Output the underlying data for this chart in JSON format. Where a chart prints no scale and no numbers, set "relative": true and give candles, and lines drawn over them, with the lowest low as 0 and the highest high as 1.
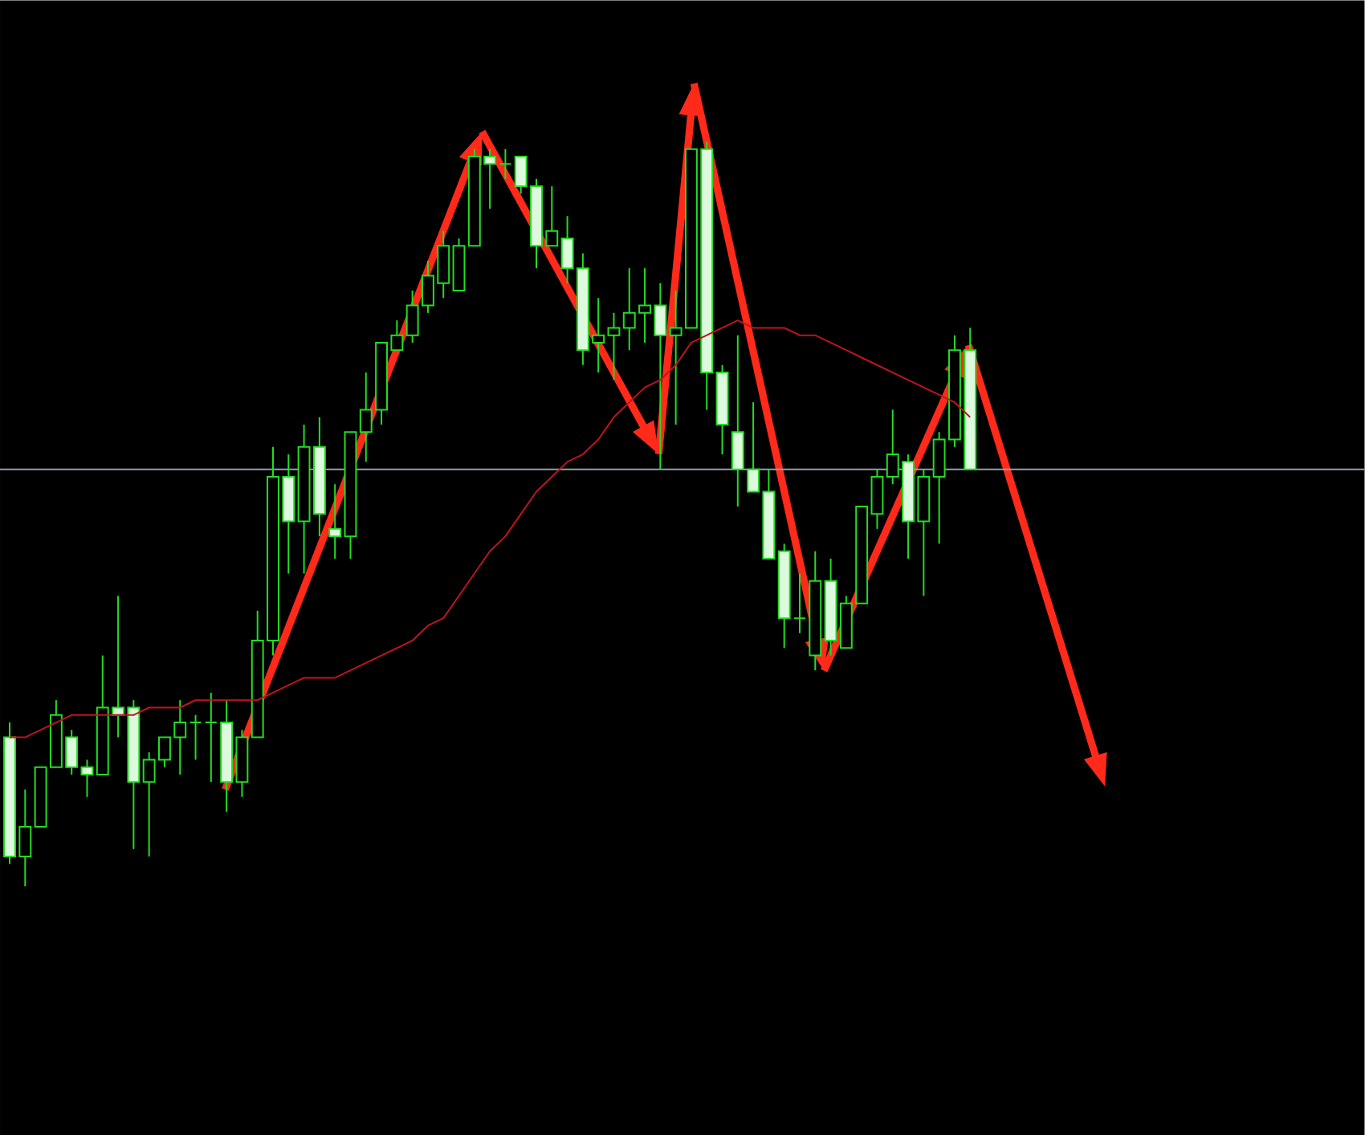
{
  "chart_data": {
    "type": "candlestick",
    "relative": true,
    "categories": [
      null,
      null,
      null,
      null,
      null,
      null,
      null,
      null,
      null,
      null,
      null,
      null,
      null,
      null,
      null,
      null,
      null,
      null,
      null,
      null,
      null,
      null,
      null,
      null,
      null,
      null,
      null,
      null,
      null,
      null,
      null,
      null,
      null,
      null,
      null,
      null,
      null,
      null,
      null,
      null,
      null,
      null,
      null,
      null,
      null,
      null,
      null,
      null,
      null,
      null,
      null,
      null,
      null,
      null,
      null,
      null,
      null,
      null,
      null,
      null,
      null,
      null,
      null
    ],
    "series": [
      {
        "type": "candlestick",
        "color": "#22dd22",
        "ohlc": [
          [
            0.2,
            0.22,
            0.03,
            0.04
          ],
          [
            0.04,
            0.13,
            0,
            0.08
          ],
          [
            0.08,
            0.16,
            0.08,
            0.16
          ],
          [
            0.16,
            0.25,
            0.16,
            0.23
          ],
          [
            0.2,
            0.21,
            0.15,
            0.16
          ],
          [
            0.16,
            0.17,
            0.12,
            0.15
          ],
          [
            0.15,
            0.31,
            0.15,
            0.24
          ],
          [
            0.24,
            0.39,
            0.2,
            0.23
          ],
          [
            0.24,
            0.25,
            0.05,
            0.14
          ],
          [
            0.14,
            0.18,
            0.04,
            0.17
          ],
          [
            0.17,
            0.2,
            0.16,
            0.2
          ],
          [
            0.2,
            0.25,
            0.15,
            0.22
          ],
          [
            0.22,
            0.23,
            0.17,
            0.22
          ],
          [
            0.22,
            0.26,
            0.14,
            0.22
          ],
          [
            0.22,
            0.25,
            0.1,
            0.14
          ],
          [
            0.14,
            0.21,
            0.12,
            0.2
          ],
          [
            0.2,
            0.37,
            0.2,
            0.33
          ],
          [
            0.33,
            0.59,
            0.31,
            0.55
          ],
          [
            0.55,
            0.58,
            0.42,
            0.49
          ],
          [
            0.49,
            0.62,
            0.42,
            0.59
          ],
          [
            0.59,
            0.63,
            0.47,
            0.5
          ],
          [
            0.48,
            0.54,
            0.44,
            0.47
          ],
          [
            0.47,
            0.61,
            0.44,
            0.61
          ],
          [
            0.61,
            0.69,
            0.57,
            0.64
          ],
          [
            0.64,
            0.73,
            0.62,
            0.73
          ],
          [
            0.72,
            0.76,
            0.72,
            0.74
          ],
          [
            0.74,
            0.8,
            0.73,
            0.78
          ],
          [
            0.78,
            0.84,
            0.77,
            0.82
          ],
          [
            0.81,
            0.88,
            0.79,
            0.86
          ],
          [
            0.8,
            0.87,
            0.8,
            0.86
          ],
          [
            0.86,
            0.99,
            0.86,
            0.98
          ],
          [
            0.98,
            0.99,
            0.91,
            0.97
          ],
          [
            0.97,
            0.99,
            0.95,
            0.97
          ],
          [
            0.98,
            0.98,
            0.93,
            0.94
          ],
          [
            0.94,
            0.95,
            0.83,
            0.86
          ],
          [
            0.86,
            0.94,
            0.86,
            0.88
          ],
          [
            0.87,
            0.9,
            0.81,
            0.83
          ],
          [
            0.83,
            0.85,
            0.7,
            0.72
          ],
          [
            0.73,
            0.79,
            0.69,
            0.74
          ],
          [
            0.74,
            0.77,
            0.68,
            0.75
          ],
          [
            0.75,
            0.83,
            0.72,
            0.77
          ],
          [
            0.77,
            0.83,
            0.73,
            0.78
          ],
          [
            0.78,
            0.81,
            0.56,
            0.74
          ],
          [
            0.74,
            0.8,
            0.62,
            0.75
          ],
          [
            0.75,
            0.99,
            0.75,
            0.99
          ],
          [
            0.99,
            1,
            0.64,
            0.69
          ],
          [
            0.69,
            0.7,
            0.58,
            0.62
          ],
          [
            0.61,
            0.74,
            0.51,
            0.56
          ],
          [
            0.56,
            0.65,
            0.53,
            0.53
          ],
          [
            0.53,
            0.56,
            0.44,
            0.44
          ],
          [
            0.45,
            0.46,
            0.32,
            0.36
          ],
          [
            0.36,
            0.42,
            0.34,
            0.36
          ],
          [
            0.31,
            0.45,
            0.29,
            0.41
          ],
          [
            0.41,
            0.44,
            0.31,
            0.33
          ],
          [
            0.32,
            0.39,
            0.32,
            0.38
          ],
          [
            0.38,
            0.51,
            0.38,
            0.51
          ],
          [
            0.5,
            0.56,
            0.48,
            0.55
          ],
          [
            0.55,
            0.64,
            0.54,
            0.58
          ],
          [
            0.57,
            0.58,
            0.44,
            0.49
          ],
          [
            0.49,
            0.56,
            0.39,
            0.55
          ],
          [
            0.55,
            0.61,
            0.46,
            0.6
          ],
          [
            0.6,
            0.74,
            0.59,
            0.72
          ],
          [
            0.72,
            0.75,
            0.56,
            0.56
          ]
        ]
      },
      {
        "type": "line",
        "color": "#c0141e",
        "values": [
          0.2,
          0.2,
          0.21,
          0.22,
          0.23,
          0.23,
          0.23,
          0.23,
          0.23,
          0.24,
          0.24,
          0.24,
          0.25,
          0.25,
          0.25,
          0.25,
          0.25,
          0.26,
          0.27,
          0.28,
          0.28,
          0.28,
          0.29,
          0.3,
          0.31,
          0.32,
          0.33,
          0.35,
          0.36,
          0.39,
          0.42,
          0.45,
          0.47,
          0.5,
          0.53,
          0.55,
          0.57,
          0.58,
          0.6,
          0.63,
          0.65,
          0.67,
          0.68,
          0.7,
          0.73,
          0.74,
          0.75,
          0.76,
          0.75,
          0.75,
          0.75,
          0.74,
          0.74,
          0.73,
          0.72,
          0.71,
          0.7,
          0.69,
          0.68,
          0.67,
          0.66,
          0.65,
          0.63
        ]
      }
    ],
    "ref_lines": [
      {
        "axis": "y",
        "value": 0.56,
        "color": "#8fa0b0"
      }
    ]
  }
}
